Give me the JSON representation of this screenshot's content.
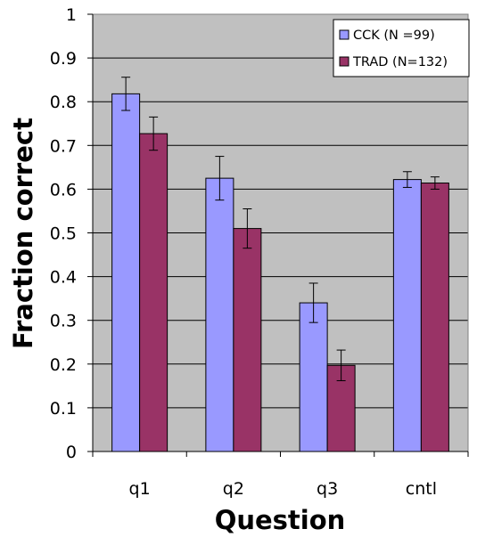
{
  "chart_data": {
    "type": "bar",
    "title": "",
    "xlabel": "Question",
    "ylabel": "Fraction correct",
    "categories": [
      "q1",
      "q2",
      "q3",
      "cntl"
    ],
    "series": [
      {
        "name": "CCK (N =99)",
        "color": "#9999ff",
        "values": [
          0.818,
          0.625,
          0.34,
          0.622
        ],
        "error": [
          0.038,
          0.05,
          0.045,
          0.018
        ]
      },
      {
        "name": "TRAD (N=132)",
        "color": "#993366",
        "values": [
          0.727,
          0.51,
          0.197,
          0.614
        ],
        "error": [
          0.038,
          0.045,
          0.035,
          0.014
        ]
      }
    ],
    "ylim": [
      0,
      1
    ],
    "yticks": [
      "0",
      "0.1",
      "0.2",
      "0.3",
      "0.4",
      "0.5",
      "0.6",
      "0.7",
      "0.8",
      "0.9",
      "1"
    ],
    "ytick_values": [
      0,
      0.1,
      0.2,
      0.3,
      0.4,
      0.5,
      0.6,
      0.7,
      0.8,
      0.9,
      1
    ],
    "grid": true,
    "plot_background": "#c0c0c0",
    "legend_position": "top-right"
  }
}
